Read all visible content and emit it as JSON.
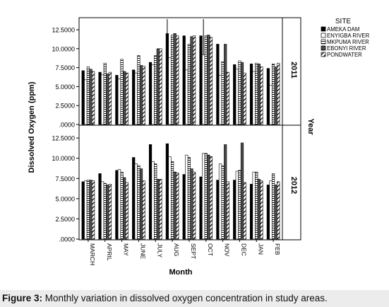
{
  "figure_caption": {
    "label": "Figure 3:",
    "text": " Monthly variation in dissolved oxygen concentration in study areas."
  },
  "chart_data": {
    "type": "bar",
    "xlabel": "Month",
    "ylabel": "Dissolved Oxygen (ppm)",
    "panel_label": "Year",
    "legend_title": "SITE",
    "legend_position": "top-right",
    "ylim": [
      0,
      14
    ],
    "yticks": [
      ".0000",
      "2.5000",
      "5.0000",
      "7.5000",
      "10.0000",
      "12.5000"
    ],
    "categories": [
      "MARCH",
      "APRIL",
      "MAY",
      "JUNE",
      "JULY",
      "AUG",
      "SEPT",
      "OCT",
      "NOV",
      "DEC",
      "JAN",
      "FEB"
    ],
    "series_styles": [
      {
        "name": "AMEKA DAM",
        "fill": "#000000",
        "pattern": "solid"
      },
      {
        "name": "ENYIGBA RIVER",
        "fill": "#ffffff",
        "pattern": "none"
      },
      {
        "name": "MKPUMA RIVER",
        "fill": "#ffffff",
        "pattern": "hlines"
      },
      {
        "name": "EBONYI RIVER",
        "fill": "#000000",
        "pattern": "dense-hlines"
      },
      {
        "name": "PONDWATER",
        "fill": "#ffffff",
        "pattern": "diagonal"
      }
    ],
    "panels": [
      {
        "label": "2011",
        "series": [
          {
            "name": "AMEKA DAM",
            "values": [
              7.1,
              6.9,
              6.5,
              7.2,
              8.2,
              12.0,
              11.7,
              11.7,
              10.6,
              7.9,
              8.0,
              7.4
            ]
          },
          {
            "name": "ENYIGBA RIVER",
            "values": [
              5.9,
              6.6,
              6.0,
              6.8,
              7.9,
              8.8,
              7.2,
              9.2,
              6.5,
              7.3,
              7.0,
              5.2
            ]
          },
          {
            "name": "MKPUMA RIVER",
            "values": [
              7.6,
              8.1,
              8.6,
              9.1,
              9.1,
              11.8,
              10.6,
              11.7,
              8.3,
              8.4,
              8.1,
              8.0
            ]
          },
          {
            "name": "EBONYI RIVER",
            "values": [
              7.3,
              6.7,
              7.0,
              7.8,
              10.0,
              12.0,
              11.6,
              11.8,
              10.6,
              8.2,
              8.0,
              7.6
            ]
          },
          {
            "name": "PONDWATER",
            "values": [
              7.0,
              6.9,
              6.8,
              7.7,
              10.0,
              11.7,
              11.7,
              11.5,
              6.9,
              6.8,
              7.6,
              8.1
            ]
          }
        ],
        "error_bars": [
          {
            "category": "AUG",
            "series": "AMEKA DAM",
            "high": 13.9
          },
          {
            "category": "OCT",
            "series": "ENYIGBA RIVER",
            "high": 13.9
          }
        ]
      },
      {
        "label": "2012",
        "series": [
          {
            "name": "AMEKA DAM",
            "values": [
              7.1,
              8.1,
              8.5,
              10.1,
              11.7,
              11.8,
              8.0,
              7.7,
              7.3,
              7.3,
              6.8,
              6.7
            ]
          },
          {
            "name": "ENYIGBA RIVER",
            "values": [
              7.2,
              7.1,
              8.6,
              9.3,
              9.6,
              10.2,
              10.4,
              10.6,
              9.3,
              8.4,
              8.3,
              7.2
            ]
          },
          {
            "name": "MKPUMA RIVER",
            "values": [
              7.3,
              6.9,
              8.3,
              9.1,
              9.3,
              9.6,
              10.1,
              10.6,
              9.1,
              8.5,
              8.3,
              8.1
            ]
          },
          {
            "name": "EBONYI RIVER",
            "values": [
              7.3,
              6.7,
              7.6,
              8.7,
              7.4,
              8.3,
              8.7,
              10.4,
              11.7,
              11.9,
              7.4,
              6.7
            ]
          },
          {
            "name": "PONDWATER",
            "values": [
              7.2,
              6.8,
              7.0,
              7.2,
              7.4,
              8.2,
              8.3,
              10.2,
              7.1,
              7.0,
              7.2,
              7.1
            ]
          }
        ]
      }
    ],
    "grid": false
  }
}
